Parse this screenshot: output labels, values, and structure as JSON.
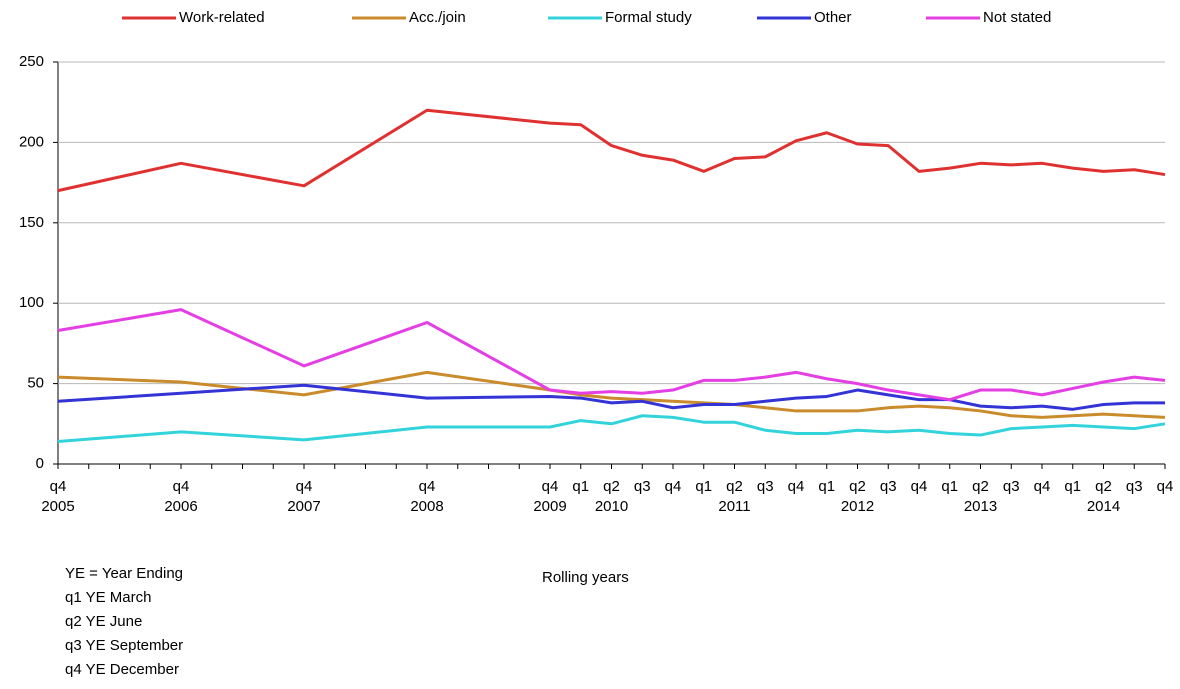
{
  "chart_data": {
    "type": "line",
    "x": [
      0,
      4,
      8,
      12,
      16,
      17,
      18,
      19,
      20,
      21,
      22,
      23,
      24,
      25,
      26,
      27,
      28,
      29,
      30,
      31,
      32,
      33,
      34,
      35,
      36
    ],
    "xlim": [
      0,
      36
    ],
    "xticks": [
      {
        "value": 0,
        "label": "q4"
      },
      {
        "value": 4,
        "label": "q4"
      },
      {
        "value": 8,
        "label": "q4"
      },
      {
        "value": 12,
        "label": "q4"
      },
      {
        "value": 16,
        "label": "q4"
      },
      {
        "value": 17,
        "label": "q1"
      },
      {
        "value": 18,
        "label": "q2"
      },
      {
        "value": 19,
        "label": "q3"
      },
      {
        "value": 20,
        "label": "q4"
      },
      {
        "value": 21,
        "label": "q1"
      },
      {
        "value": 22,
        "label": "q2"
      },
      {
        "value": 23,
        "label": "q3"
      },
      {
        "value": 24,
        "label": "q4"
      },
      {
        "value": 25,
        "label": "q1"
      },
      {
        "value": 26,
        "label": "q2"
      },
      {
        "value": 27,
        "label": "q3"
      },
      {
        "value": 28,
        "label": "q4"
      },
      {
        "value": 29,
        "label": "q1"
      },
      {
        "value": 30,
        "label": "q2"
      },
      {
        "value": 31,
        "label": "q3"
      },
      {
        "value": 32,
        "label": "q4"
      },
      {
        "value": 33,
        "label": "q1"
      },
      {
        "value": 34,
        "label": "q2"
      },
      {
        "value": 35,
        "label": "q3"
      },
      {
        "value": 36,
        "label": "q4"
      }
    ],
    "xminorticks": [
      1,
      2,
      3,
      5,
      6,
      7,
      9,
      10,
      11,
      13,
      14,
      15
    ],
    "xyears": [
      {
        "value": 0,
        "label": "2005"
      },
      {
        "value": 4,
        "label": "2006"
      },
      {
        "value": 8,
        "label": "2007"
      },
      {
        "value": 12,
        "label": "2008"
      },
      {
        "value": 16,
        "label": "2009"
      },
      {
        "value": 18,
        "label": "2010"
      },
      {
        "value": 22,
        "label": "2011"
      },
      {
        "value": 26,
        "label": "2012"
      },
      {
        "value": 30,
        "label": "2013"
      },
      {
        "value": 34,
        "label": "2014"
      }
    ],
    "xlabel": "Rolling years",
    "ylim": [
      0,
      250
    ],
    "yticks": [
      0,
      50,
      100,
      150,
      200,
      250
    ],
    "grid": true,
    "legend": "top",
    "series": [
      {
        "name": "Work-related",
        "color": "#e03131",
        "values": [
          170,
          187,
          173,
          220,
          212,
          211,
          198,
          192,
          189,
          182,
          190,
          191,
          201,
          206,
          199,
          198,
          182,
          184,
          187,
          186,
          187,
          184,
          182,
          183,
          180
        ]
      },
      {
        "name": "Acc./join",
        "color": "#c98b2b",
        "values": [
          54,
          51,
          43,
          57,
          46,
          43,
          41,
          40,
          39,
          38,
          37,
          35,
          33,
          33,
          33,
          35,
          36,
          35,
          33,
          30,
          29,
          30,
          31,
          30,
          29
        ]
      },
      {
        "name": "Formal study",
        "color": "#33d3dc",
        "values": [
          14,
          20,
          15,
          23,
          23,
          27,
          25,
          30,
          29,
          26,
          26,
          21,
          19,
          19,
          21,
          20,
          21,
          19,
          18,
          22,
          23,
          24,
          23,
          22,
          25
        ]
      },
      {
        "name": "Other",
        "color": "#3333d6",
        "values": [
          39,
          44,
          49,
          41,
          42,
          41,
          38,
          39,
          35,
          37,
          37,
          39,
          41,
          42,
          46,
          43,
          40,
          40,
          36,
          35,
          36,
          34,
          37,
          38,
          38
        ]
      },
      {
        "name": "Not stated",
        "color": "#e43fe4",
        "values": [
          83,
          96,
          61,
          88,
          46,
          44,
          45,
          44,
          46,
          52,
          52,
          54,
          57,
          53,
          50,
          46,
          43,
          40,
          46,
          46,
          43,
          47,
          51,
          54,
          52
        ]
      }
    ],
    "notes": [
      "YE = Year Ending",
      "q1 YE March",
      "q2 YE June",
      "q3 YE September",
      "q4 YE December"
    ]
  }
}
